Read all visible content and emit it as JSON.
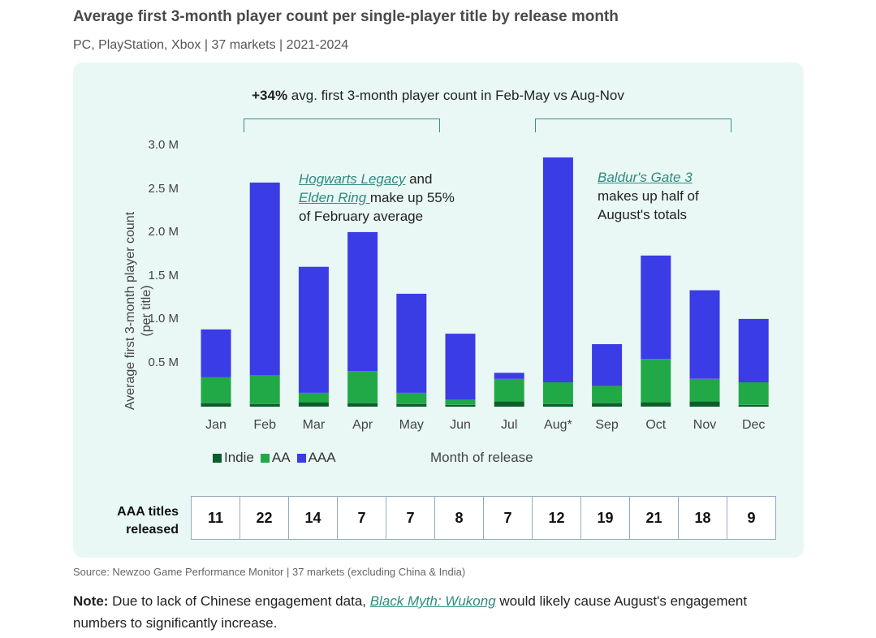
{
  "title": "Average first 3-month player count per single-player title by release month",
  "subtitle": "PC, PlayStation, Xbox | 37 markets | 2021-2024",
  "headline": {
    "bold": "+34%",
    "rest": " avg. first 3-month player count in Feb-May vs Aug-Nov"
  },
  "annotations": {
    "feb": {
      "link1": "Hogwarts Legacy",
      "and": " and",
      "link2": "Elden Ring ",
      "rest1": " make up 55%",
      "rest2": "of February average"
    },
    "aug": {
      "link": "Baldur's Gate 3",
      "line2": "makes up half of",
      "line3": "August's totals"
    }
  },
  "chart_data": {
    "type": "bar",
    "stacked": true,
    "title": "Average first 3-month player count per single-player title by release month",
    "xlabel": "Month of release",
    "ylabel": "Average first 3-month player count (per title)",
    "ylabel_line1": "Average first 3-month player count",
    "ylabel_line2": "(per title)",
    "ylim": [
      0,
      3000000
    ],
    "yticks": [
      {
        "value": 500000,
        "label": "0.5 M"
      },
      {
        "value": 1000000,
        "label": "1.0 M"
      },
      {
        "value": 1500000,
        "label": "1.5 M"
      },
      {
        "value": 2000000,
        "label": "2.0 M"
      },
      {
        "value": 2500000,
        "label": "2.5 M"
      },
      {
        "value": 3000000,
        "label": "3.0 M"
      }
    ],
    "categories": [
      "Jan",
      "Feb",
      "Mar",
      "Apr",
      "May",
      "Jun",
      "Jul",
      "Aug*",
      "Sep",
      "Oct",
      "Nov",
      "Dec"
    ],
    "series": [
      {
        "name": "Indie",
        "color": "#0b5d2a",
        "values": [
          40000,
          30000,
          50000,
          40000,
          30000,
          20000,
          60000,
          30000,
          40000,
          50000,
          60000,
          20000
        ]
      },
      {
        "name": "AA",
        "color": "#22a947",
        "values": [
          300000,
          330000,
          110000,
          370000,
          130000,
          60000,
          260000,
          250000,
          200000,
          500000,
          260000,
          260000
        ]
      },
      {
        "name": "AAA",
        "color": "#3a3ce6",
        "values": [
          550000,
          2220000,
          1450000,
          1600000,
          1140000,
          760000,
          70000,
          2590000,
          480000,
          1190000,
          1020000,
          730000
        ]
      }
    ],
    "legend_position": "bottom-left"
  },
  "aaa_table": {
    "label_line1": "AAA titles",
    "label_line2": "released",
    "counts": [
      "11",
      "22",
      "14",
      "7",
      "7",
      "8",
      "7",
      "12",
      "19",
      "21",
      "18",
      "9"
    ]
  },
  "source": "Source: Newzoo Game Performance Monitor | 37 markets (excluding China & India)",
  "note": {
    "bold": "Note:",
    "pre": " Due to lack of Chinese engagement data, ",
    "link": "Black Myth: Wukong",
    "post": " would likely cause August's engagement numbers to significantly increase."
  }
}
